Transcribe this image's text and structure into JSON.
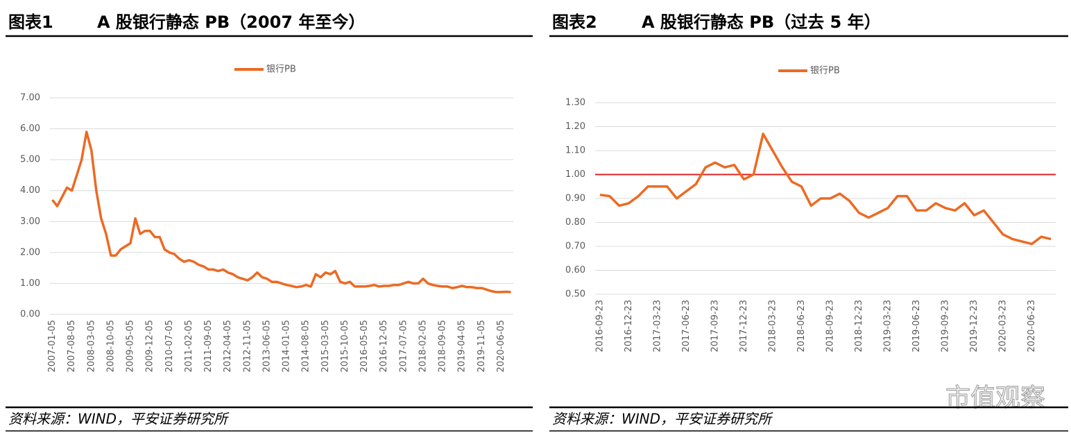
{
  "chart_data": [
    {
      "type": "line",
      "label": "图表1",
      "title": "A 股银行静态 PB（2007 年至今）",
      "categories": [
        "2007-01-05",
        null,
        null,
        null,
        "2007-08-05",
        null,
        null,
        null,
        "2008-03-05",
        null,
        null,
        null,
        "2008-10-05",
        null,
        null,
        null,
        "2009-05-05",
        null,
        null,
        null,
        "2009-12-05",
        null,
        null,
        null,
        "2010-07-05",
        null,
        null,
        null,
        "2011-02-05",
        null,
        null,
        null,
        "2011-09-05",
        null,
        null,
        null,
        "2012-04-05",
        null,
        null,
        null,
        "2012-11-05",
        null,
        null,
        null,
        "2013-06-05",
        null,
        null,
        null,
        "2014-01-05",
        null,
        null,
        null,
        "2014-08-05",
        null,
        null,
        null,
        "2015-03-05",
        null,
        null,
        null,
        "2015-10-05",
        null,
        null,
        null,
        "2016-05-05",
        null,
        null,
        null,
        "2016-12-05",
        null,
        null,
        null,
        "2017-07-05",
        null,
        null,
        null,
        "2018-02-05",
        null,
        null,
        null,
        "2018-09-05",
        null,
        null,
        null,
        "2019-04-05",
        null,
        null,
        null,
        "2019-11-05",
        null,
        null,
        null,
        "2020-06-05",
        null,
        null
      ],
      "series": [
        {
          "name": "银行PB",
          "color": "#ec6a23",
          "values": [
            3.7,
            3.5,
            3.8,
            4.1,
            4.0,
            4.5,
            5.0,
            5.9,
            5.3,
            4.0,
            3.1,
            2.6,
            1.9,
            1.9,
            2.1,
            2.2,
            2.3,
            3.1,
            2.6,
            2.7,
            2.7,
            2.5,
            2.5,
            2.1,
            2.0,
            1.95,
            1.8,
            1.7,
            1.75,
            1.7,
            1.6,
            1.55,
            1.45,
            1.45,
            1.4,
            1.45,
            1.35,
            1.3,
            1.2,
            1.15,
            1.1,
            1.2,
            1.35,
            1.2,
            1.15,
            1.05,
            1.05,
            1.0,
            0.95,
            0.92,
            0.88,
            0.9,
            0.95,
            0.9,
            1.3,
            1.2,
            1.35,
            1.3,
            1.4,
            1.05,
            1.0,
            1.05,
            0.9,
            0.9,
            0.9,
            0.92,
            0.95,
            0.9,
            0.92,
            0.92,
            0.95,
            0.95,
            1.0,
            1.05,
            1.0,
            1.0,
            1.15,
            1.0,
            0.95,
            0.92,
            0.9,
            0.9,
            0.85,
            0.88,
            0.92,
            0.88,
            0.88,
            0.85,
            0.85,
            0.8,
            0.75,
            0.72,
            0.72,
            0.73,
            0.72
          ]
        }
      ],
      "ylim": [
        0,
        7
      ],
      "yticks": [
        {
          "value": 0,
          "label": "0.00"
        },
        {
          "value": 1,
          "label": "1.00"
        },
        {
          "value": 2,
          "label": "2.00"
        },
        {
          "value": 3,
          "label": "3.00"
        },
        {
          "value": 4,
          "label": "4.00"
        },
        {
          "value": 5,
          "label": "5.00"
        },
        {
          "value": 6,
          "label": "6.00"
        },
        {
          "value": 7,
          "label": "7.00"
        }
      ],
      "grid": true,
      "legend": "top",
      "source": "资料来源：WIND，平安证券研究所"
    },
    {
      "type": "line",
      "label": "图表2",
      "title": "A 股银行静态 PB（过去 5 年）",
      "categories": [
        "2016-09-23",
        null,
        null,
        "2016-12-23",
        null,
        null,
        "2017-03-23",
        null,
        null,
        "2017-06-23",
        null,
        null,
        "2017-09-23",
        null,
        null,
        "2017-12-23",
        null,
        null,
        "2018-03-23",
        null,
        null,
        "2018-06-23",
        null,
        null,
        "2018-09-23",
        null,
        null,
        "2018-12-23",
        null,
        null,
        "2019-03-23",
        null,
        null,
        "2019-06-23",
        null,
        null,
        "2019-09-23",
        null,
        null,
        "2019-12-23",
        null,
        null,
        "2020-03-23",
        null,
        null,
        "2020-06-23",
        null,
        null
      ],
      "series": [
        {
          "name": "银行PB",
          "color": "#ec6a23",
          "values": [
            0.915,
            0.91,
            0.87,
            0.88,
            0.91,
            0.95,
            0.95,
            0.95,
            0.9,
            0.93,
            0.96,
            1.03,
            1.05,
            1.03,
            1.04,
            0.98,
            1.0,
            1.17,
            1.1,
            1.03,
            0.97,
            0.95,
            0.87,
            0.9,
            0.9,
            0.92,
            0.89,
            0.84,
            0.82,
            0.84,
            0.86,
            0.91,
            0.91,
            0.85,
            0.85,
            0.88,
            0.86,
            0.85,
            0.88,
            0.83,
            0.85,
            0.8,
            0.75,
            0.73,
            0.72,
            0.71,
            0.74,
            0.73
          ]
        }
      ],
      "reference_line": {
        "value": 1.0,
        "color": "#e02020"
      },
      "ylim": [
        0.5,
        1.3
      ],
      "yticks": [
        {
          "value": 0.5,
          "label": "0.50"
        },
        {
          "value": 0.6,
          "label": "0.60"
        },
        {
          "value": 0.7,
          "label": "0.70"
        },
        {
          "value": 0.8,
          "label": "0.80"
        },
        {
          "value": 0.9,
          "label": "0.90"
        },
        {
          "value": 1.0,
          "label": "1.00"
        },
        {
          "value": 1.1,
          "label": "1.10"
        },
        {
          "value": 1.2,
          "label": "1.20"
        },
        {
          "value": 1.3,
          "label": "1.30"
        }
      ],
      "grid": true,
      "legend": "top",
      "source": "资料来源：WIND，平安证券研究所"
    }
  ],
  "watermark": "市值观察"
}
